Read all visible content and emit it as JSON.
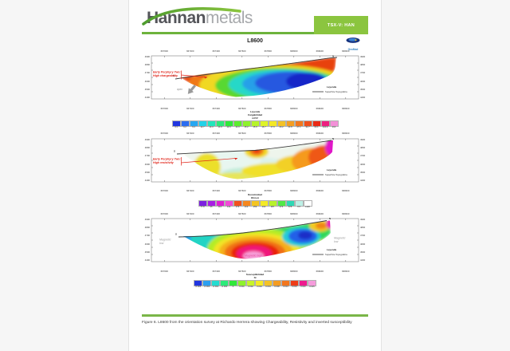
{
  "header": {
    "brand_bold": "Hannan",
    "brand_light": "metals",
    "ticker": "TSX-V: HAN",
    "accent_color": "#6db33c",
    "ticker_bg": "#8bc53f"
  },
  "title": "L8600",
  "geomod_label": "GeoMod",
  "legend": {
    "title": "Leyenda",
    "entry": "Superficie Topografica"
  },
  "markers": {
    "south": "S",
    "north": "N"
  },
  "coord_ticks": [
    "667000",
    "667200",
    "667400",
    "667600",
    "667800",
    "668000",
    "668200",
    "668400"
  ],
  "elev_ticks": [
    "4900",
    "4800",
    "4700",
    "4600",
    "4500",
    "4400"
  ],
  "sections": [
    {
      "name": "Chargeability",
      "annotation": [
        "Early Porphyry Two:",
        "High chargeability"
      ],
      "annotation_color": "#e0251a",
      "open_label": "open",
      "axis_label": [
        "Leyenda",
        "Cargabilidad",
        "mV/V"
      ],
      "colorbar": {
        "colors": [
          "#2136e0",
          "#2b6cf0",
          "#27a7f2",
          "#22d2e8",
          "#21e6bc",
          "#2cea7a",
          "#30e83a",
          "#5cee2e",
          "#8df22c",
          "#b6f42a",
          "#def428",
          "#f4e826",
          "#f4c226",
          "#f49e22",
          "#f2781e",
          "#f0501c",
          "#ea2a16",
          "#ee2080",
          "#f391d8"
        ],
        "labels": [
          "3.1",
          "6.2",
          "9.4",
          "12.7",
          "13.3",
          "13.9",
          "14.6",
          "14.9",
          "15.2",
          "15.9",
          "16.7",
          "17.9",
          "20.2",
          "23.8",
          "27.1",
          "31.7",
          "60.1",
          "104.9",
          "214"
        ]
      }
    },
    {
      "name": "Resistivity",
      "annotation": [
        "Early Porphyry Two:",
        "High resistivity"
      ],
      "annotation_color": "#e0251a",
      "axis_label": [
        "Resistividad",
        "Ohm.m"
      ],
      "colorbar": {
        "colors": [
          "#7d21e0",
          "#a81fe4",
          "#df1fd2",
          "#f24ad6",
          "#f2521c",
          "#f5871e",
          "#f4c522",
          "#f4ea26",
          "#b8f22c",
          "#52e846",
          "#2cd8b4",
          "#bdf0e6",
          "#ffffff"
        ],
        "labels": [
          "77.8",
          "95",
          "116",
          "142",
          "173",
          "212",
          "259",
          "316",
          "387",
          "473",
          "578",
          "707",
          "1420"
        ]
      }
    },
    {
      "name": "Susceptibility",
      "mag_low_left": [
        "Magnetic",
        "low"
      ],
      "mag_low_right": [
        "Magnetic",
        "low"
      ],
      "mag_high": "Magnetic high",
      "axis_label": [
        "Susceptibilidad",
        "SI"
      ],
      "colorbar": {
        "colors": [
          "#2136e0",
          "#2b9ff0",
          "#24dcd0",
          "#2cea7a",
          "#30e83a",
          "#8df22c",
          "#c6f42a",
          "#f4ea26",
          "#f4c226",
          "#f49c22",
          "#f2761e",
          "#ee3c18",
          "#ee1a8e",
          "#f59cdc"
        ],
        "labels": [
          "-0.004",
          "-0.002",
          "-0.001",
          "-0.000",
          "0",
          "0.001",
          "0.002",
          "0.003",
          "0.004",
          "0.008",
          "0.013",
          "0.019",
          "0.021",
          "0.025"
        ]
      }
    }
  ],
  "caption": "Figure 6. L8600 from the orientation survey at Richardo Herrera showing Chargeability, Resistivity and inverted susceptibility"
}
